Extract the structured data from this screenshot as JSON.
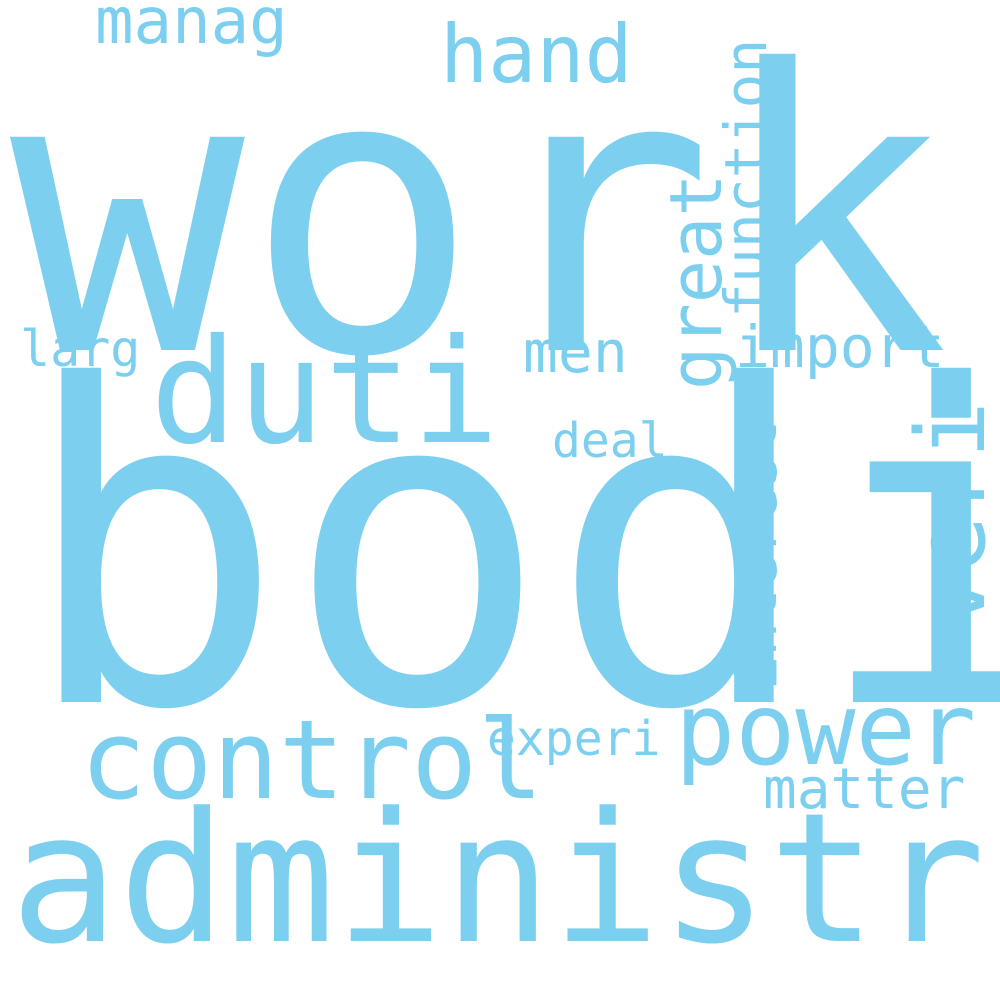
{
  "word_cloud": {
    "text_color": "#7ccfef",
    "background": "#ffffff",
    "words": [
      {
        "text": "work",
        "orientation": "horizontal"
      },
      {
        "text": "bodi",
        "orientation": "horizontal"
      },
      {
        "text": "administr",
        "orientation": "horizontal"
      },
      {
        "text": "duti",
        "orientation": "horizontal"
      },
      {
        "text": "control",
        "orientation": "horizontal"
      },
      {
        "text": "power",
        "orientation": "horizontal"
      },
      {
        "text": "veri",
        "orientation": "vertical"
      },
      {
        "text": "hand",
        "orientation": "horizontal"
      },
      {
        "text": "manag",
        "orientation": "horizontal"
      },
      {
        "text": "import",
        "orientation": "horizontal"
      },
      {
        "text": "men",
        "orientation": "horizontal"
      },
      {
        "text": "great",
        "orientation": "vertical"
      },
      {
        "text": "function",
        "orientation": "vertical"
      },
      {
        "text": "interest",
        "orientation": "vertical"
      },
      {
        "text": "larg",
        "orientation": "horizontal"
      },
      {
        "text": "deal",
        "orientation": "horizontal"
      },
      {
        "text": "experi",
        "orientation": "horizontal"
      },
      {
        "text": "matter",
        "orientation": "horizontal"
      }
    ]
  }
}
